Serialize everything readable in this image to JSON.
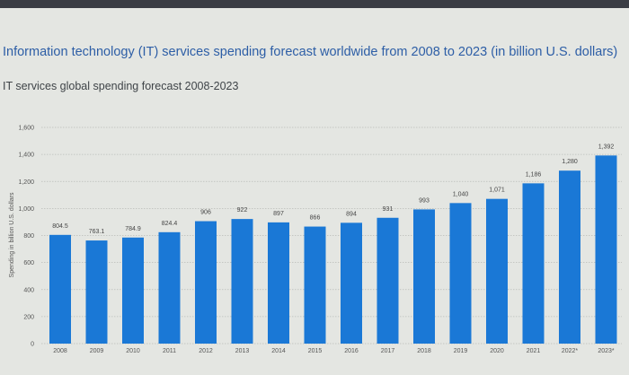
{
  "header": {
    "title": "Information technology (IT) services spending forecast worldwide from 2008 to 2023 (in billion U.S. dollars)",
    "subtitle": "IT services global spending forecast 2008-2023"
  },
  "chart_data": {
    "type": "bar",
    "title": "Information technology (IT) services spending forecast worldwide from 2008 to 2023 (in billion U.S. dollars)",
    "xlabel": "",
    "ylabel": "Spending in billion U.S. dollars",
    "ylim": [
      0,
      1600
    ],
    "yticks": [
      0,
      200,
      400,
      600,
      800,
      1000,
      1200,
      1400,
      1600
    ],
    "ytick_labels": [
      "0",
      "200",
      "400",
      "600",
      "800",
      "1,000",
      "1,200",
      "1,400",
      "1,600"
    ],
    "grid": true,
    "categories": [
      "2008",
      "2009",
      "2010",
      "2011",
      "2012",
      "2013",
      "2014",
      "2015",
      "2016",
      "2017",
      "2018",
      "2019",
      "2020",
      "2021",
      "2022*",
      "2023*"
    ],
    "values": [
      804.5,
      763.1,
      784.9,
      824.4,
      906,
      922,
      897,
      866,
      894,
      931,
      993,
      1040,
      1071,
      1186,
      1280,
      1392
    ],
    "value_labels": [
      "804.5",
      "763.1",
      "784.9",
      "824.4",
      "906",
      "922",
      "897",
      "866",
      "894",
      "931",
      "993",
      "1,040",
      "1,071",
      "1,186",
      "1,280",
      "1,392"
    ],
    "bar_color": "#1a78d6"
  }
}
